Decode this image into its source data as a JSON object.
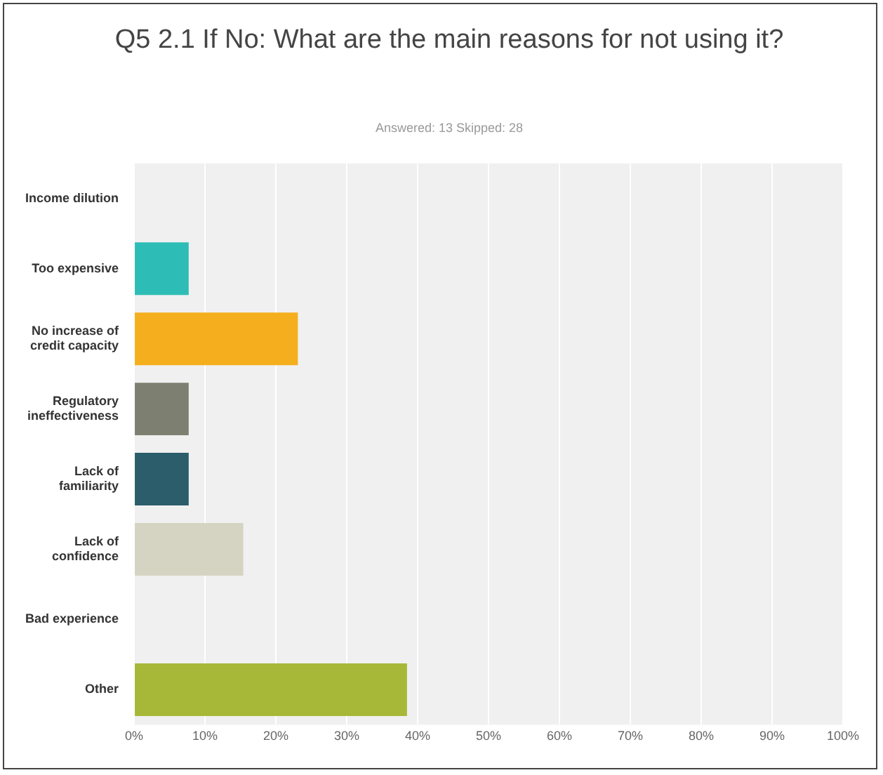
{
  "chart_data": {
    "type": "bar",
    "orientation": "horizontal",
    "title": "Q5 2.1 If No: What are the main reasons for not using it?",
    "subtitle": "Answered: 13    Skipped: 28",
    "categories": [
      "Income dilution",
      "Too expensive",
      "No increase of credit capacity",
      "Regulatory ineffectiveness",
      "Lack of familiarity",
      "Lack of confidence",
      "Bad experience",
      "Other"
    ],
    "values": [
      0,
      7.7,
      23.1,
      7.7,
      7.7,
      15.4,
      0,
      38.5
    ],
    "colors": [
      "#2dbdb6",
      "#2dbdb6",
      "#f5ae1d",
      "#7d8070",
      "#2c5d6b",
      "#d5d3c2",
      "#a7b838",
      "#a7b838"
    ],
    "xlim": [
      0,
      100
    ],
    "xticks": [
      {
        "value": 0,
        "label": "0%"
      },
      {
        "value": 10,
        "label": "10%"
      },
      {
        "value": 20,
        "label": "20%"
      },
      {
        "value": 30,
        "label": "30%"
      },
      {
        "value": 40,
        "label": "40%"
      },
      {
        "value": 50,
        "label": "50%"
      },
      {
        "value": 60,
        "label": "60%"
      },
      {
        "value": 70,
        "label": "70%"
      },
      {
        "value": 80,
        "label": "80%"
      },
      {
        "value": 90,
        "label": "90%"
      },
      {
        "value": 100,
        "label": "100%"
      }
    ],
    "grid": "x",
    "legend": false
  }
}
